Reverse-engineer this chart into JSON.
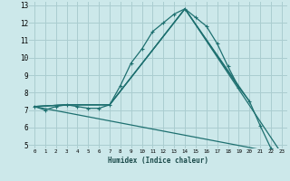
{
  "xlabel": "Humidex (Indice chaleur)",
  "bg_color": "#cce8ea",
  "grid_color": "#aacdd0",
  "line_color": "#1e7070",
  "xlim": [
    -0.5,
    23.5
  ],
  "ylim": [
    4.8,
    13.2
  ],
  "xticks": [
    0,
    1,
    2,
    3,
    4,
    5,
    6,
    7,
    8,
    9,
    10,
    11,
    12,
    13,
    14,
    15,
    16,
    17,
    18,
    19,
    20,
    21,
    22,
    23
  ],
  "yticks": [
    5,
    6,
    7,
    8,
    9,
    10,
    11,
    12,
    13
  ],
  "series_main": {
    "x": [
      0,
      1,
      2,
      3,
      4,
      5,
      6,
      7,
      8,
      9,
      10,
      11,
      12,
      13,
      14,
      15,
      16,
      17,
      18,
      19,
      20,
      21,
      22,
      23
    ],
    "y": [
      7.2,
      7.0,
      7.2,
      7.3,
      7.2,
      7.1,
      7.1,
      7.3,
      8.4,
      9.7,
      10.5,
      11.5,
      12.0,
      12.5,
      12.8,
      12.3,
      11.8,
      10.8,
      9.5,
      8.3,
      7.5,
      6.1,
      4.8,
      4.5
    ]
  },
  "series_extra": [
    {
      "x": [
        0,
        3,
        7,
        14,
        20
      ],
      "y": [
        7.2,
        7.3,
        7.3,
        12.8,
        7.5
      ]
    },
    {
      "x": [
        0,
        3,
        7,
        14,
        19
      ],
      "y": [
        7.2,
        7.3,
        7.3,
        12.8,
        8.3
      ]
    },
    {
      "x": [
        0,
        23
      ],
      "y": [
        7.2,
        4.5
      ]
    },
    {
      "x": [
        0,
        3,
        7,
        14,
        23
      ],
      "y": [
        7.2,
        7.3,
        7.3,
        12.8,
        4.5
      ]
    }
  ]
}
